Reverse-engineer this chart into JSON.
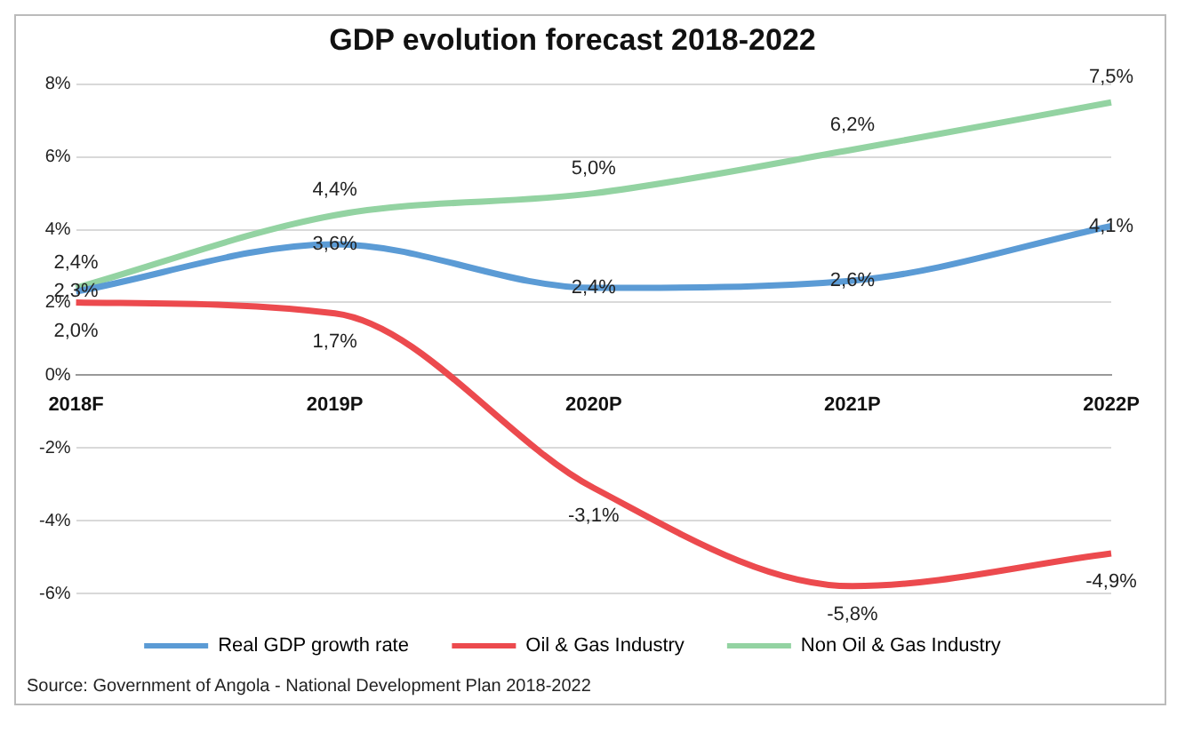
{
  "chart_data": {
    "type": "line",
    "title": "GDP evolution forecast 2018-2022",
    "categories": [
      "2018F",
      "2019P",
      "2020P",
      "2021P",
      "2022P"
    ],
    "series": [
      {
        "name": "Real GDP growth rate",
        "color": "#5b9bd5",
        "values": [
          2.3,
          3.6,
          2.4,
          2.6,
          4.1
        ],
        "value_labels": [
          "2,3%",
          "3,6%",
          "2,4%",
          "2,6%",
          "4,1%"
        ]
      },
      {
        "name": "Oil & Gas Industry",
        "color": "#ec4a4e",
        "values": [
          2.0,
          1.7,
          -3.1,
          -5.8,
          -4.9
        ],
        "value_labels": [
          "2,0%",
          "1,7%",
          "-3,1%",
          "-5,8%",
          "-4,9%"
        ]
      },
      {
        "name": "Non Oil & Gas Industry",
        "color": "#93d3a2",
        "values": [
          2.4,
          4.4,
          5.0,
          6.2,
          7.5
        ],
        "value_labels": [
          "2,4%",
          "4,4%",
          "5,0%",
          "6,2%",
          "7,5%"
        ]
      }
    ],
    "ylim": [
      -6,
      8
    ],
    "yticks": [
      {
        "value": -6,
        "label": "-6%"
      },
      {
        "value": -4,
        "label": "-4%"
      },
      {
        "value": -2,
        "label": "-2%"
      },
      {
        "value": 0,
        "label": "0%"
      },
      {
        "value": 2,
        "label": "2%"
      },
      {
        "value": 4,
        "label": "4%"
      },
      {
        "value": 6,
        "label": "6%"
      },
      {
        "value": 8,
        "label": "8%"
      }
    ],
    "grid": "y",
    "legend": "bottom",
    "marker": "none",
    "line_style": "solid",
    "annotations": [
      "Source: Government of Angola - National Development Plan 2018-2022"
    ]
  }
}
